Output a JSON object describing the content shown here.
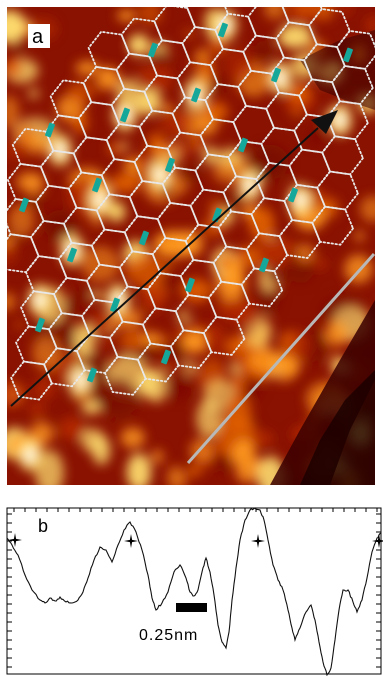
{
  "figure": {
    "panel_a": {
      "label": "a",
      "colormap": [
        "#3a0000",
        "#7a0a00",
        "#b52a00",
        "#e06000",
        "#ff9a20",
        "#ffe070",
        "#ffffff"
      ],
      "lattice_color": "#e8e8e8",
      "marker_color": "#15a89a",
      "arrow_color": "#111111",
      "gray_line_color": "#b8b8b8"
    },
    "panel_b": {
      "label": "b",
      "scale_bar_label": "0.25nm",
      "line_color": "#111111"
    }
  }
}
